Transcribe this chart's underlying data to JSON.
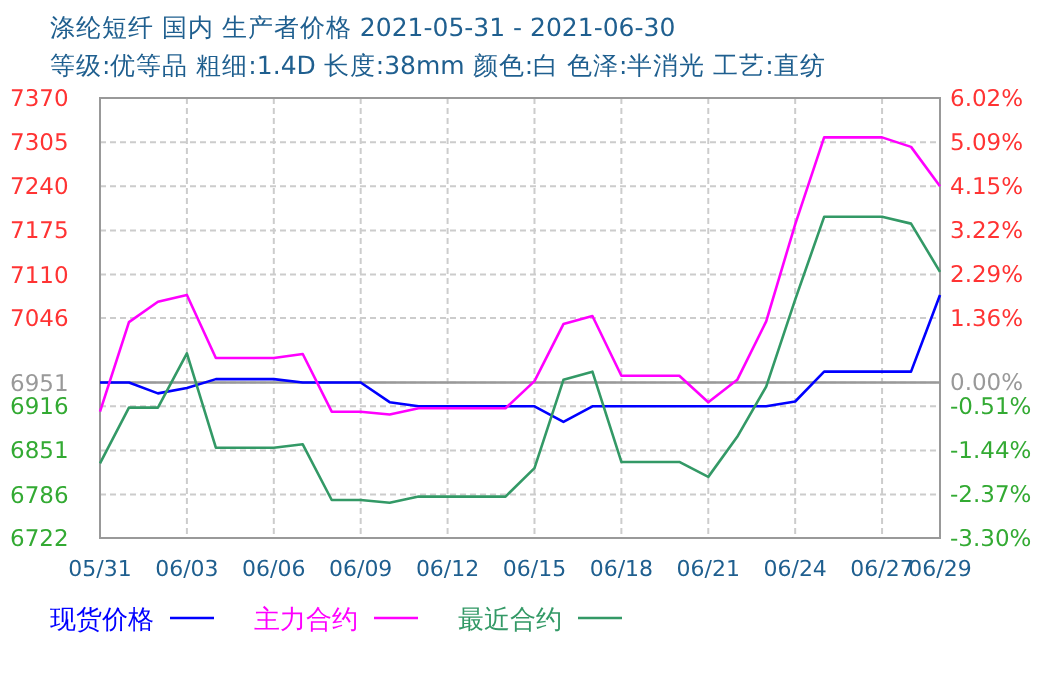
{
  "chart_data": {
    "type": "line",
    "title": "涤纶短纤 国内 生产者价格 2021-05-31 - 2021-06-30",
    "subtitle": "等级:优等品 粗细:1.4D 长度:38mm 颜色:白 色泽:半消光 工艺:直纺",
    "x": [
      "2021-05-31",
      "2021-06-01",
      "2021-06-02",
      "2021-06-03",
      "2021-06-04",
      "2021-06-05",
      "2021-06-06",
      "2021-06-07",
      "2021-06-08",
      "2021-06-09",
      "2021-06-10",
      "2021-06-11",
      "2021-06-12",
      "2021-06-13",
      "2021-06-14",
      "2021-06-15",
      "2021-06-16",
      "2021-06-17",
      "2021-06-18",
      "2021-06-19",
      "2021-06-20",
      "2021-06-21",
      "2021-06-22",
      "2021-06-23",
      "2021-06-24",
      "2021-06-25",
      "2021-06-26",
      "2021-06-27",
      "2021-06-28",
      "2021-06-29"
    ],
    "series": [
      {
        "name": "现货价格",
        "color": "#0000ff",
        "values": [
          6951,
          6951,
          6935,
          6943,
          6956,
          6956,
          6956,
          6951,
          6951,
          6951,
          6922,
          6916,
          6916,
          6916,
          6916,
          6916,
          6893,
          6916,
          6916,
          6916,
          6916,
          6916,
          6916,
          6916,
          6923,
          6967,
          6967,
          6967,
          6967,
          7080
        ]
      },
      {
        "name": "主力合约",
        "color": "#ff00ff",
        "values": [
          6908,
          7040,
          7070,
          7080,
          6987,
          6987,
          6987,
          6993,
          6908,
          6908,
          6904,
          6913,
          6913,
          6913,
          6913,
          6953,
          7037,
          7049,
          6961,
          6961,
          6961,
          6922,
          6955,
          7041,
          7184,
          7312,
          7312,
          7312,
          7298,
          7240
        ]
      },
      {
        "name": "最近合约",
        "color": "#339966",
        "values": [
          6832,
          6914,
          6914,
          6994,
          6855,
          6855,
          6855,
          6860,
          6778,
          6778,
          6774,
          6783,
          6783,
          6783,
          6783,
          6825,
          6955,
          6967,
          6834,
          6834,
          6834,
          6812,
          6871,
          6945,
          7073,
          7195,
          7195,
          7195,
          7185,
          7114
        ]
      }
    ],
    "xlim": [
      "2021-05-31",
      "2021-06-29"
    ],
    "xticks": [
      {
        "value": "2021-05-31",
        "label": "05/31"
      },
      {
        "value": "2021-06-03",
        "label": "06/03"
      },
      {
        "value": "2021-06-06",
        "label": "06/06"
      },
      {
        "value": "2021-06-09",
        "label": "06/09"
      },
      {
        "value": "2021-06-12",
        "label": "06/12"
      },
      {
        "value": "2021-06-15",
        "label": "06/15"
      },
      {
        "value": "2021-06-18",
        "label": "06/18"
      },
      {
        "value": "2021-06-21",
        "label": "06/21"
      },
      {
        "value": "2021-06-24",
        "label": "06/24"
      },
      {
        "value": "2021-06-27",
        "label": "06/27"
      },
      {
        "value": "2021-06-29",
        "label": "06/29"
      }
    ],
    "ylim": [
      6722,
      7370
    ],
    "yticks": [
      6722,
      6786,
      6851,
      6916,
      6951,
      7046,
      7110,
      7175,
      7240,
      7305,
      7370
    ],
    "y2lim": [
      -3.3,
      6.02
    ],
    "y2ticks": [
      {
        "value": -3.3,
        "label": "-3.30%"
      },
      {
        "value": -2.37,
        "label": "-2.37%"
      },
      {
        "value": -1.44,
        "label": "-1.44%"
      },
      {
        "value": -0.51,
        "label": "-0.51%"
      },
      {
        "value": 0,
        "label": "0.00%"
      },
      {
        "value": 1.36,
        "label": "1.36%"
      },
      {
        "value": 2.29,
        "label": "2.29%"
      },
      {
        "value": 3.22,
        "label": "3.22%"
      },
      {
        "value": 4.15,
        "label": "4.15%"
      },
      {
        "value": 5.09,
        "label": "5.09%"
      },
      {
        "value": 6.02,
        "label": "6.02%"
      }
    ],
    "ref_lines": [
      {
        "axis": "y",
        "value": 6951,
        "color": "#999999"
      }
    ],
    "grid": true,
    "legend": "bottom",
    "marker": "none",
    "line_style": "solid"
  }
}
